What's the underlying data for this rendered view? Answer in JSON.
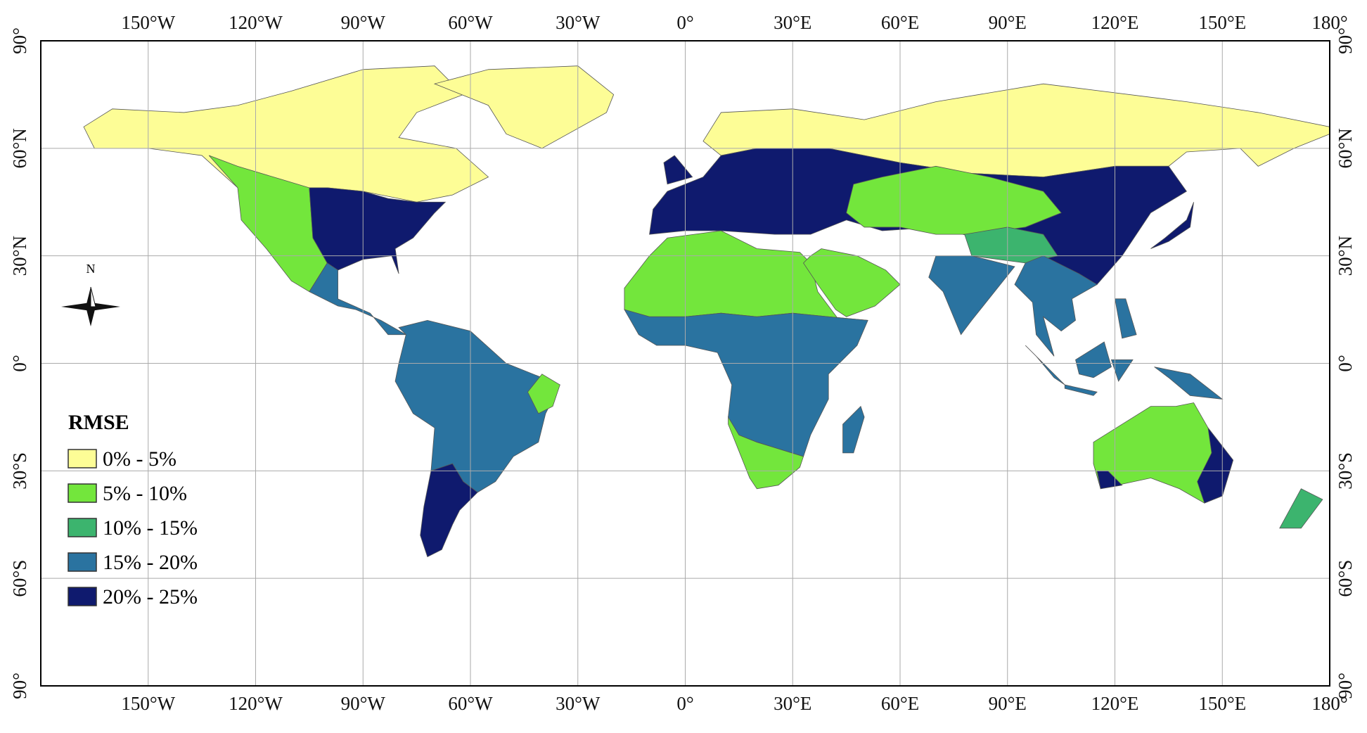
{
  "map": {
    "lon_range": [
      -180,
      180
    ],
    "lat_range": [
      -90,
      90
    ],
    "lon_ticks": [
      {
        "value": -150,
        "label": "150°W"
      },
      {
        "value": -120,
        "label": "120°W"
      },
      {
        "value": -90,
        "label": "90°W"
      },
      {
        "value": -60,
        "label": "60°W"
      },
      {
        "value": -30,
        "label": "30°W"
      },
      {
        "value": 0,
        "label": "0°"
      },
      {
        "value": 30,
        "label": "30°E"
      },
      {
        "value": 60,
        "label": "60°E"
      },
      {
        "value": 90,
        "label": "90°E"
      },
      {
        "value": 120,
        "label": "120°E"
      },
      {
        "value": 150,
        "label": "150°E"
      },
      {
        "value": 180,
        "label": "180°"
      }
    ],
    "lat_ticks": [
      {
        "value": 90,
        "label": "90°"
      },
      {
        "value": 60,
        "label": "60°N"
      },
      {
        "value": 30,
        "label": "30°N"
      },
      {
        "value": 0,
        "label": "0°"
      },
      {
        "value": -30,
        "label": "30°S"
      },
      {
        "value": -60,
        "label": "60°S"
      },
      {
        "value": -90,
        "label": "90°"
      }
    ],
    "compass": "N",
    "legend": {
      "title": "RMSE",
      "items": [
        {
          "label": "0% - 5%",
          "color": "#fdfd96"
        },
        {
          "label": "5% - 10%",
          "color": "#73e63c"
        },
        {
          "label": "10% - 15%",
          "color": "#3cb46e"
        },
        {
          "label": "15% - 20%",
          "color": "#2a73a0"
        },
        {
          "label": "20% - 25%",
          "color": "#0f1a6e"
        }
      ]
    }
  }
}
